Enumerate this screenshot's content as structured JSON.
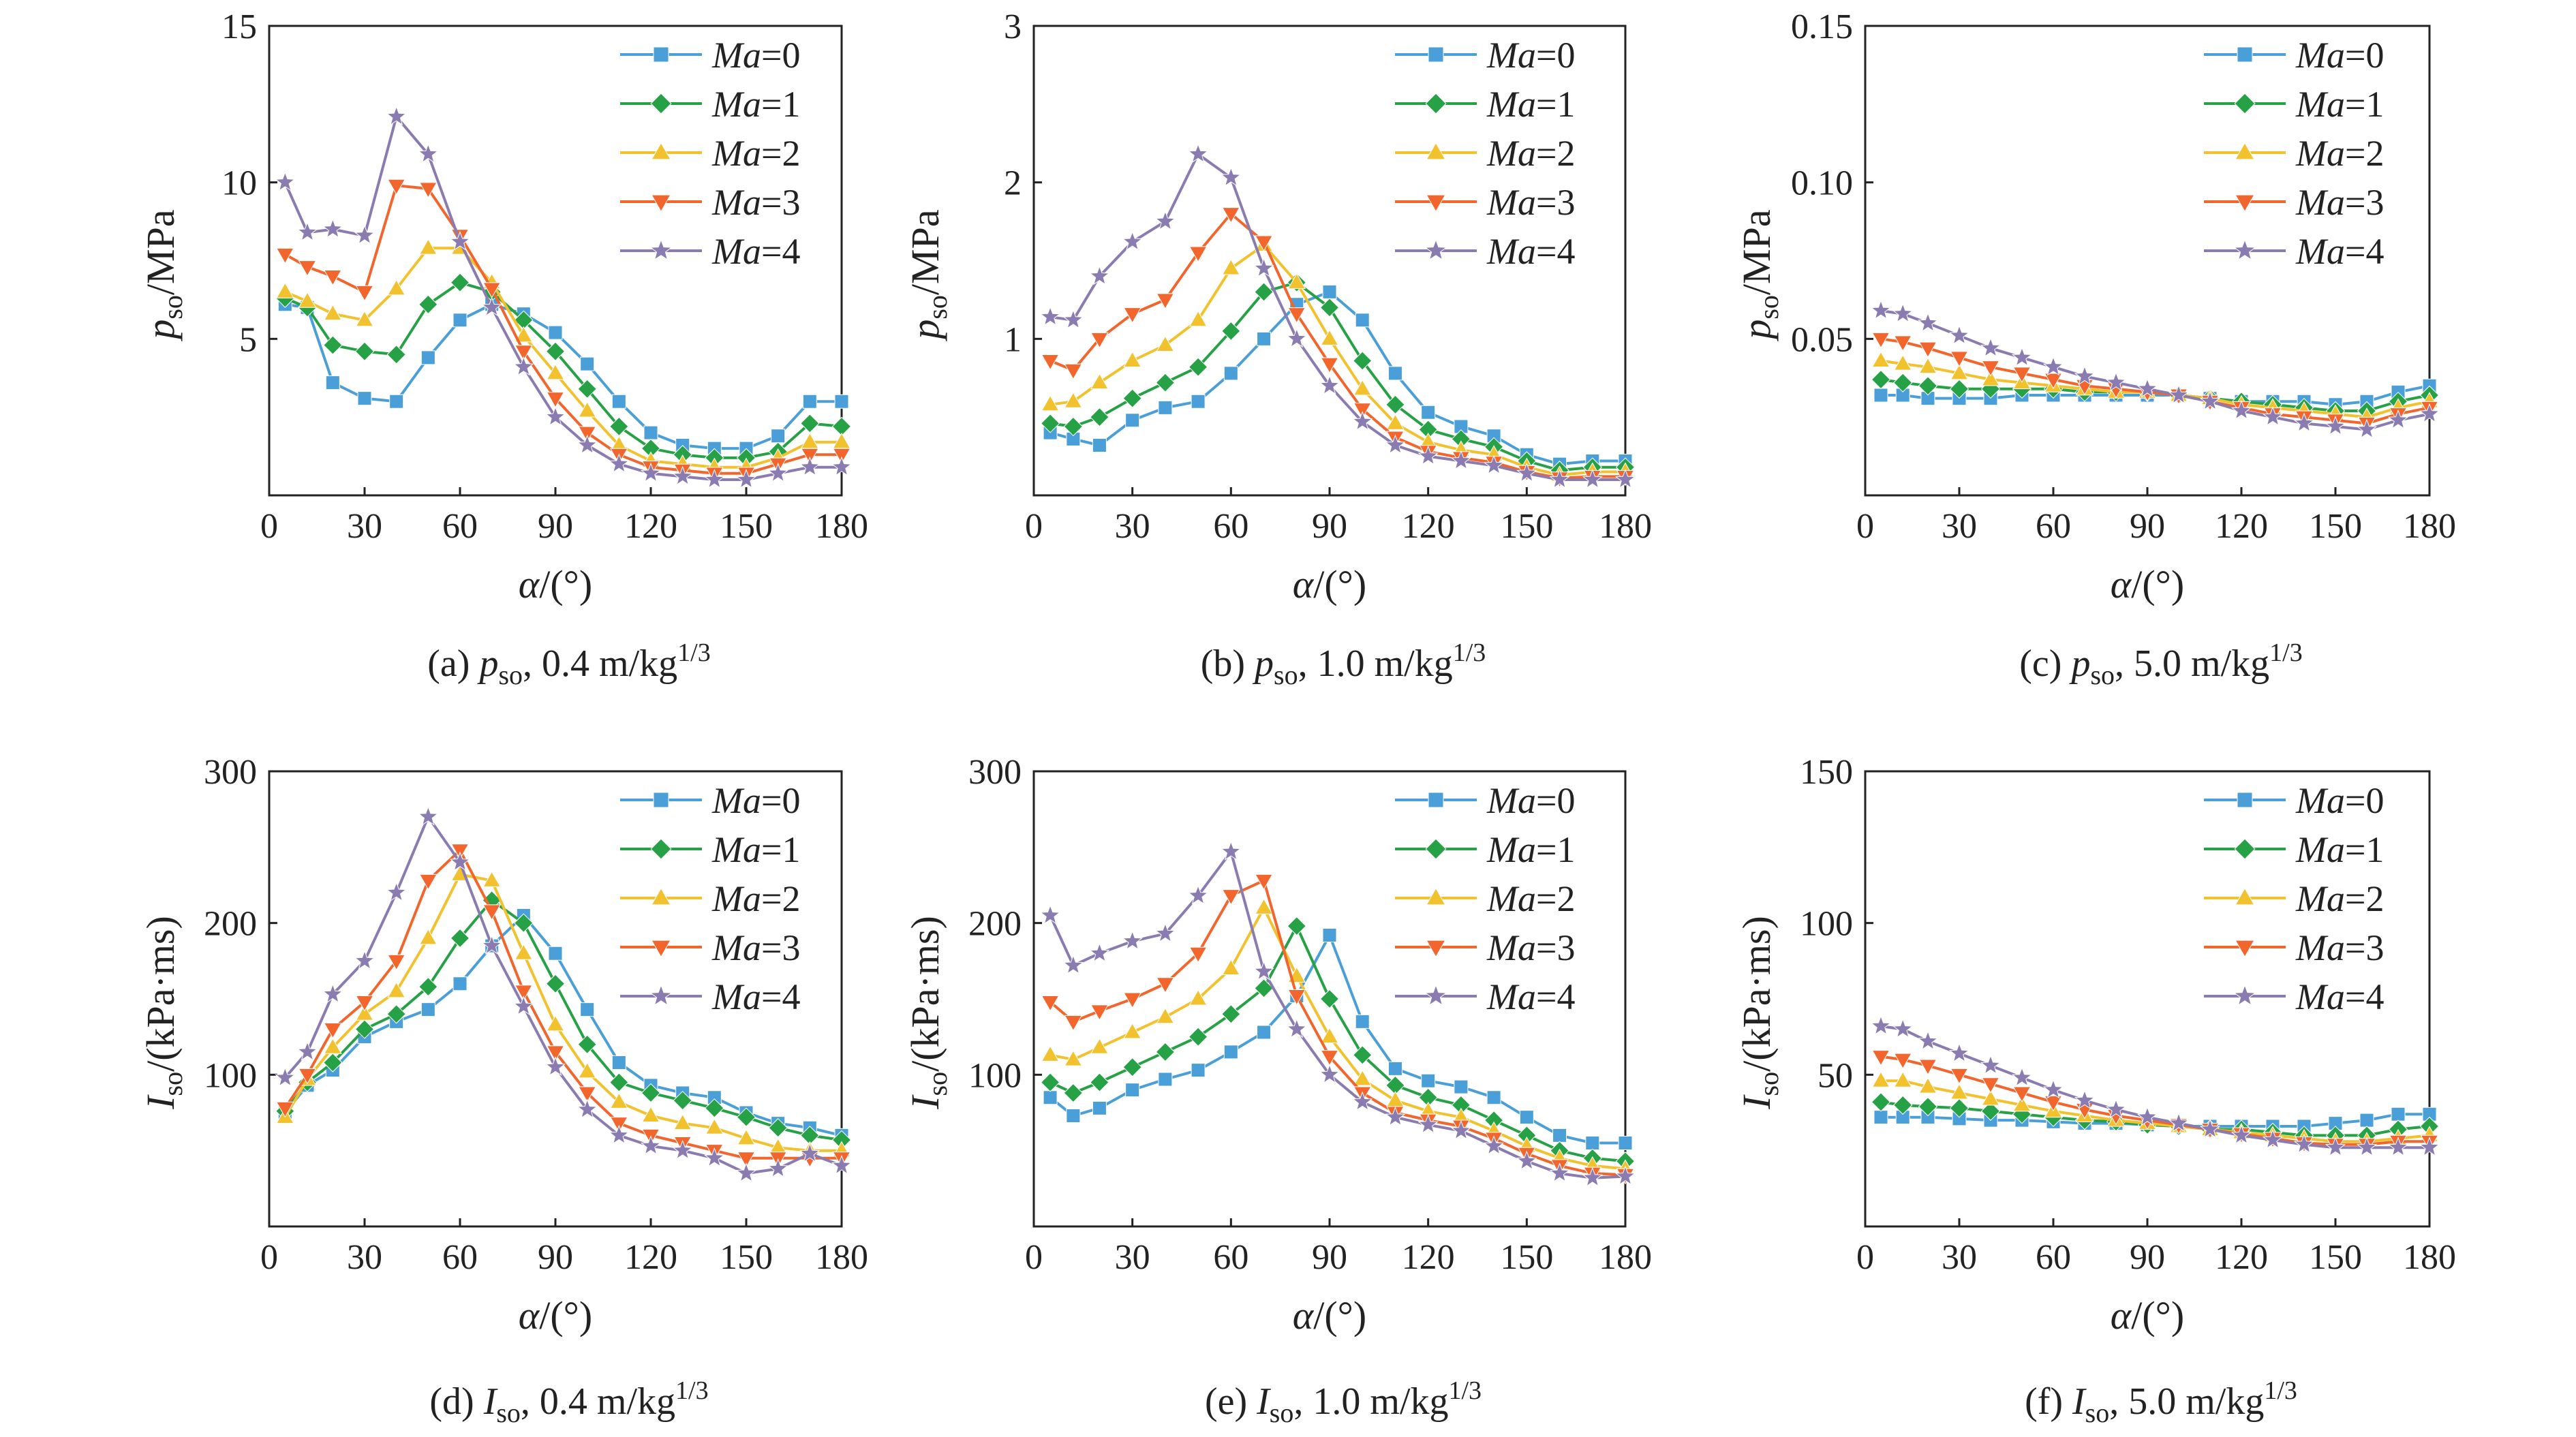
{
  "legend": [
    {
      "label": "Ma=0",
      "color": "#4a9fd8",
      "marker": "square"
    },
    {
      "label": "Ma=1",
      "color": "#27a145",
      "marker": "diamond"
    },
    {
      "label": "Ma=2",
      "color": "#f2c22e",
      "marker": "triangle-up"
    },
    {
      "label": "Ma=3",
      "color": "#f2662e",
      "marker": "triangle-down"
    },
    {
      "label": "Ma=4",
      "color": "#8a7bb0",
      "marker": "star"
    }
  ],
  "chart_data": [
    {
      "type": "line",
      "panel": "a",
      "caption": "(a) pso, 0.4 m/kg1/3",
      "caption_parts": {
        "prefix": "(a)",
        "symbol": "p",
        "sub": "so",
        "text": ", 0.4 m/kg",
        "sup": "1/3"
      },
      "xlabel": "α/(°)",
      "xlabel_parts": {
        "sym": "α",
        "unit": "/(°)"
      },
      "ylabel": "pso/MPa",
      "ylabel_parts": {
        "sym": "p",
        "sub": "so",
        "unit": "/MPa"
      },
      "xlim": [
        0,
        180
      ],
      "ylim": [
        0,
        15
      ],
      "xticks": [
        0,
        30,
        60,
        90,
        120,
        150,
        180
      ],
      "yticks": [
        5,
        10,
        15
      ],
      "ytick_labels": [
        "5",
        "10",
        "15"
      ],
      "x": [
        5,
        12,
        20,
        30,
        40,
        50,
        60,
        70,
        80,
        90,
        100,
        110,
        120,
        130,
        140,
        150,
        160,
        170,
        180
      ],
      "series": [
        {
          "name": "Ma=0",
          "values": [
            6.1,
            6.0,
            3.6,
            3.1,
            3.0,
            4.4,
            5.6,
            6.1,
            5.8,
            5.2,
            4.2,
            3.0,
            2.0,
            1.6,
            1.5,
            1.5,
            1.9,
            3.0,
            3.0
          ]
        },
        {
          "name": "Ma=1",
          "values": [
            6.3,
            6.0,
            4.8,
            4.6,
            4.5,
            6.1,
            6.8,
            6.5,
            5.6,
            4.6,
            3.4,
            2.2,
            1.5,
            1.3,
            1.2,
            1.2,
            1.4,
            2.3,
            2.2
          ]
        },
        {
          "name": "Ma=2",
          "values": [
            6.5,
            6.2,
            5.8,
            5.6,
            6.6,
            7.9,
            7.9,
            6.8,
            5.1,
            3.9,
            2.7,
            1.6,
            1.1,
            1.0,
            0.9,
            0.9,
            1.2,
            1.7,
            1.7
          ]
        },
        {
          "name": "Ma=3",
          "values": [
            7.7,
            7.3,
            7.0,
            6.5,
            9.9,
            9.8,
            8.3,
            6.6,
            4.6,
            3.1,
            2.0,
            1.3,
            0.9,
            0.8,
            0.7,
            0.7,
            1.0,
            1.3,
            1.3
          ]
        },
        {
          "name": "Ma=4",
          "values": [
            10.0,
            8.4,
            8.5,
            8.3,
            12.1,
            10.9,
            8.1,
            6.0,
            4.1,
            2.5,
            1.6,
            1.0,
            0.7,
            0.6,
            0.5,
            0.5,
            0.7,
            0.9,
            0.9
          ]
        }
      ]
    },
    {
      "type": "line",
      "panel": "b",
      "caption": "(b) pso, 1.0 m/kg1/3",
      "caption_parts": {
        "prefix": "(b)",
        "symbol": "p",
        "sub": "so",
        "text": ", 1.0 m/kg",
        "sup": "1/3"
      },
      "xlabel": "α/(°)",
      "xlabel_parts": {
        "sym": "α",
        "unit": "/(°)"
      },
      "ylabel": "pso/MPa",
      "ylabel_parts": {
        "sym": "p",
        "sub": "so",
        "unit": "/MPa"
      },
      "xlim": [
        0,
        180
      ],
      "ylim": [
        0,
        3
      ],
      "xticks": [
        0,
        30,
        60,
        90,
        120,
        150,
        180
      ],
      "yticks": [
        1,
        2,
        3
      ],
      "ytick_labels": [
        "1",
        "2",
        "3"
      ],
      "x": [
        5,
        12,
        20,
        30,
        40,
        50,
        60,
        70,
        80,
        90,
        100,
        110,
        120,
        130,
        140,
        150,
        160,
        170,
        180
      ],
      "series": [
        {
          "name": "Ma=0",
          "values": [
            0.4,
            0.36,
            0.32,
            0.48,
            0.56,
            0.6,
            0.78,
            1.0,
            1.22,
            1.3,
            1.12,
            0.78,
            0.53,
            0.44,
            0.38,
            0.26,
            0.2,
            0.22,
            0.22
          ]
        },
        {
          "name": "Ma=1",
          "values": [
            0.46,
            0.44,
            0.5,
            0.62,
            0.72,
            0.82,
            1.05,
            1.3,
            1.36,
            1.2,
            0.86,
            0.58,
            0.42,
            0.36,
            0.31,
            0.22,
            0.16,
            0.18,
            0.18
          ]
        },
        {
          "name": "Ma=2",
          "values": [
            0.58,
            0.6,
            0.72,
            0.86,
            0.96,
            1.12,
            1.45,
            1.6,
            1.36,
            1.0,
            0.68,
            0.46,
            0.34,
            0.29,
            0.26,
            0.18,
            0.13,
            0.15,
            0.15
          ]
        },
        {
          "name": "Ma=3",
          "values": [
            0.86,
            0.8,
            1.0,
            1.16,
            1.25,
            1.55,
            1.8,
            1.62,
            1.16,
            0.84,
            0.55,
            0.37,
            0.28,
            0.24,
            0.21,
            0.15,
            0.11,
            0.12,
            0.12
          ]
        },
        {
          "name": "Ma=4",
          "values": [
            1.14,
            1.12,
            1.4,
            1.62,
            1.75,
            2.18,
            2.03,
            1.45,
            1.0,
            0.7,
            0.47,
            0.32,
            0.25,
            0.22,
            0.19,
            0.14,
            0.1,
            0.1,
            0.1
          ]
        }
      ]
    },
    {
      "type": "line",
      "panel": "c",
      "caption": "(c) pso, 5.0 m/kg1/3",
      "caption_parts": {
        "prefix": "(c)",
        "symbol": "p",
        "sub": "so",
        "text": ", 5.0 m/kg",
        "sup": "1/3"
      },
      "xlabel": "α/(°)",
      "xlabel_parts": {
        "sym": "α",
        "unit": "/(°)"
      },
      "ylabel": "pso/MPa",
      "ylabel_parts": {
        "sym": "p",
        "sub": "so",
        "unit": "/MPa"
      },
      "xlim": [
        0,
        180
      ],
      "ylim": [
        0,
        0.15
      ],
      "xticks": [
        0,
        30,
        60,
        90,
        120,
        150,
        180
      ],
      "yticks": [
        0.05,
        0.1,
        0.15
      ],
      "ytick_labels": [
        "0.05",
        "0.10",
        "0.15"
      ],
      "x": [
        5,
        12,
        20,
        30,
        40,
        50,
        60,
        70,
        80,
        90,
        100,
        110,
        120,
        130,
        140,
        150,
        160,
        170,
        180
      ],
      "series": [
        {
          "name": "Ma=0",
          "values": [
            0.032,
            0.032,
            0.031,
            0.031,
            0.031,
            0.032,
            0.032,
            0.032,
            0.032,
            0.032,
            0.032,
            0.031,
            0.03,
            0.03,
            0.03,
            0.029,
            0.03,
            0.033,
            0.035
          ]
        },
        {
          "name": "Ma=1",
          "values": [
            0.037,
            0.036,
            0.035,
            0.034,
            0.034,
            0.034,
            0.034,
            0.033,
            0.033,
            0.033,
            0.032,
            0.031,
            0.03,
            0.029,
            0.028,
            0.027,
            0.027,
            0.03,
            0.032
          ]
        },
        {
          "name": "Ma=2",
          "values": [
            0.043,
            0.042,
            0.041,
            0.039,
            0.037,
            0.036,
            0.035,
            0.034,
            0.033,
            0.033,
            0.032,
            0.031,
            0.029,
            0.028,
            0.027,
            0.026,
            0.025,
            0.028,
            0.03
          ]
        },
        {
          "name": "Ma=3",
          "values": [
            0.05,
            0.049,
            0.047,
            0.044,
            0.041,
            0.039,
            0.037,
            0.035,
            0.034,
            0.033,
            0.032,
            0.03,
            0.028,
            0.026,
            0.025,
            0.024,
            0.023,
            0.026,
            0.028
          ]
        },
        {
          "name": "Ma=4",
          "values": [
            0.059,
            0.058,
            0.055,
            0.051,
            0.047,
            0.044,
            0.041,
            0.038,
            0.036,
            0.034,
            0.032,
            0.03,
            0.027,
            0.025,
            0.023,
            0.022,
            0.021,
            0.024,
            0.026
          ]
        }
      ]
    },
    {
      "type": "line",
      "panel": "d",
      "caption": "(d) Iso, 0.4 m/kg1/3",
      "caption_parts": {
        "prefix": "(d)",
        "symbol": "I",
        "sub": "so",
        "text": ", 0.4 m/kg",
        "sup": "1/3"
      },
      "xlabel": "α/(°)",
      "xlabel_parts": {
        "sym": "α",
        "unit": "/(°)"
      },
      "ylabel": "Iso/(kPa·ms)",
      "ylabel_parts": {
        "sym": "I",
        "sub": "so",
        "unit": "/(kPa·ms)"
      },
      "xlim": [
        0,
        180
      ],
      "ylim": [
        0,
        300
      ],
      "xticks": [
        0,
        30,
        60,
        90,
        120,
        150,
        180
      ],
      "yticks": [
        100,
        200,
        300
      ],
      "ytick_labels": [
        "100",
        "200",
        "300"
      ],
      "x": [
        5,
        12,
        20,
        30,
        40,
        50,
        60,
        70,
        80,
        90,
        100,
        110,
        120,
        130,
        140,
        150,
        160,
        170,
        180
      ],
      "series": [
        {
          "name": "Ma=0",
          "values": [
            75,
            93,
            103,
            125,
            135,
            143,
            160,
            185,
            205,
            180,
            143,
            108,
            93,
            88,
            85,
            75,
            68,
            65,
            60
          ]
        },
        {
          "name": "Ma=1",
          "values": [
            76,
            95,
            108,
            130,
            140,
            158,
            190,
            215,
            200,
            160,
            120,
            95,
            88,
            83,
            78,
            72,
            65,
            60,
            57
          ]
        },
        {
          "name": "Ma=2",
          "values": [
            72,
            97,
            118,
            140,
            155,
            190,
            232,
            228,
            180,
            133,
            102,
            82,
            73,
            68,
            65,
            58,
            52,
            50,
            50
          ]
        },
        {
          "name": "Ma=3",
          "values": [
            78,
            100,
            130,
            148,
            175,
            228,
            248,
            208,
            155,
            115,
            88,
            68,
            60,
            55,
            50,
            45,
            45,
            45,
            45
          ]
        },
        {
          "name": "Ma=4",
          "values": [
            98,
            115,
            153,
            175,
            220,
            270,
            240,
            185,
            145,
            105,
            77,
            60,
            53,
            50,
            45,
            35,
            38,
            48,
            40
          ]
        }
      ]
    },
    {
      "type": "line",
      "panel": "e",
      "caption": "(e) Iso, 1.0 m/kg1/3",
      "caption_parts": {
        "prefix": "(e)",
        "symbol": "I",
        "sub": "so",
        "text": ", 1.0 m/kg",
        "sup": "1/3"
      },
      "xlabel": "α/(°)",
      "xlabel_parts": {
        "sym": "α",
        "unit": "/(°)"
      },
      "ylabel": "Iso/(kPa·ms)",
      "ylabel_parts": {
        "sym": "I",
        "sub": "so",
        "unit": "/(kPa·ms)"
      },
      "xlim": [
        0,
        180
      ],
      "ylim": [
        0,
        300
      ],
      "xticks": [
        0,
        30,
        60,
        90,
        120,
        150,
        180
      ],
      "yticks": [
        100,
        200,
        300
      ],
      "ytick_labels": [
        "100",
        "200",
        "300"
      ],
      "x": [
        5,
        12,
        20,
        30,
        40,
        50,
        60,
        70,
        80,
        90,
        100,
        110,
        120,
        130,
        140,
        150,
        160,
        170,
        180
      ],
      "series": [
        {
          "name": "Ma=0",
          "values": [
            85,
            73,
            78,
            90,
            97,
            103,
            115,
            128,
            152,
            192,
            135,
            104,
            96,
            92,
            85,
            72,
            60,
            55,
            55
          ]
        },
        {
          "name": "Ma=1",
          "values": [
            95,
            88,
            95,
            105,
            115,
            125,
            140,
            157,
            198,
            150,
            113,
            93,
            85,
            80,
            70,
            60,
            50,
            45,
            43
          ]
        },
        {
          "name": "Ma=2",
          "values": [
            113,
            110,
            118,
            128,
            138,
            150,
            170,
            210,
            165,
            125,
            97,
            83,
            76,
            72,
            63,
            53,
            45,
            40,
            38
          ]
        },
        {
          "name": "Ma=3",
          "values": [
            148,
            135,
            142,
            150,
            160,
            180,
            218,
            228,
            152,
            112,
            88,
            75,
            70,
            66,
            58,
            48,
            40,
            35,
            34
          ]
        },
        {
          "name": "Ma=4",
          "values": [
            205,
            172,
            180,
            188,
            193,
            218,
            247,
            168,
            130,
            100,
            82,
            72,
            67,
            63,
            53,
            43,
            35,
            32,
            33
          ]
        }
      ]
    },
    {
      "type": "line",
      "panel": "f",
      "caption": "(f) Iso, 5.0 m/kg1/3",
      "caption_parts": {
        "prefix": "(f)",
        "symbol": "I",
        "sub": "so",
        "text": ", 5.0 m/kg",
        "sup": "1/3"
      },
      "xlabel": "α/(°)",
      "xlabel_parts": {
        "sym": "α",
        "unit": "/(°)"
      },
      "ylabel": "Iso/(kPa·ms)",
      "ylabel_parts": {
        "sym": "I",
        "sub": "so",
        "unit": "/(kPa·ms)"
      },
      "xlim": [
        0,
        180
      ],
      "ylim": [
        0,
        150
      ],
      "xticks": [
        0,
        30,
        60,
        90,
        120,
        150,
        180
      ],
      "yticks": [
        50,
        100,
        150
      ],
      "ytick_labels": [
        "50",
        "100",
        "150"
      ],
      "x": [
        5,
        12,
        20,
        30,
        40,
        50,
        60,
        70,
        80,
        90,
        100,
        110,
        120,
        130,
        140,
        150,
        160,
        170,
        180
      ],
      "series": [
        {
          "name": "Ma=0",
          "values": [
            36,
            36,
            36,
            35.5,
            35,
            35,
            34.5,
            34,
            34,
            33.5,
            33,
            33,
            33,
            33,
            33,
            34,
            35,
            37,
            37
          ]
        },
        {
          "name": "Ma=1",
          "values": [
            41,
            40,
            39.5,
            39,
            38,
            37,
            36,
            35,
            34.5,
            33.5,
            33,
            32,
            32,
            31,
            30,
            30,
            30,
            32,
            33
          ]
        },
        {
          "name": "Ma=2",
          "values": [
            48,
            48,
            46,
            44,
            42,
            40,
            38,
            36.5,
            35,
            34,
            33,
            32,
            31,
            30,
            29,
            28,
            28,
            29,
            30
          ]
        },
        {
          "name": "Ma=3",
          "values": [
            56,
            55,
            53,
            50,
            47,
            44,
            41,
            38.5,
            36.5,
            35,
            33.5,
            32,
            30.5,
            29,
            27.5,
            27,
            27,
            28,
            28
          ]
        },
        {
          "name": "Ma=4",
          "values": [
            66,
            65,
            61,
            57,
            53,
            49,
            45,
            41.5,
            38.5,
            36,
            34,
            32,
            30,
            28.5,
            27,
            26,
            26,
            26,
            26
          ]
        }
      ]
    }
  ]
}
